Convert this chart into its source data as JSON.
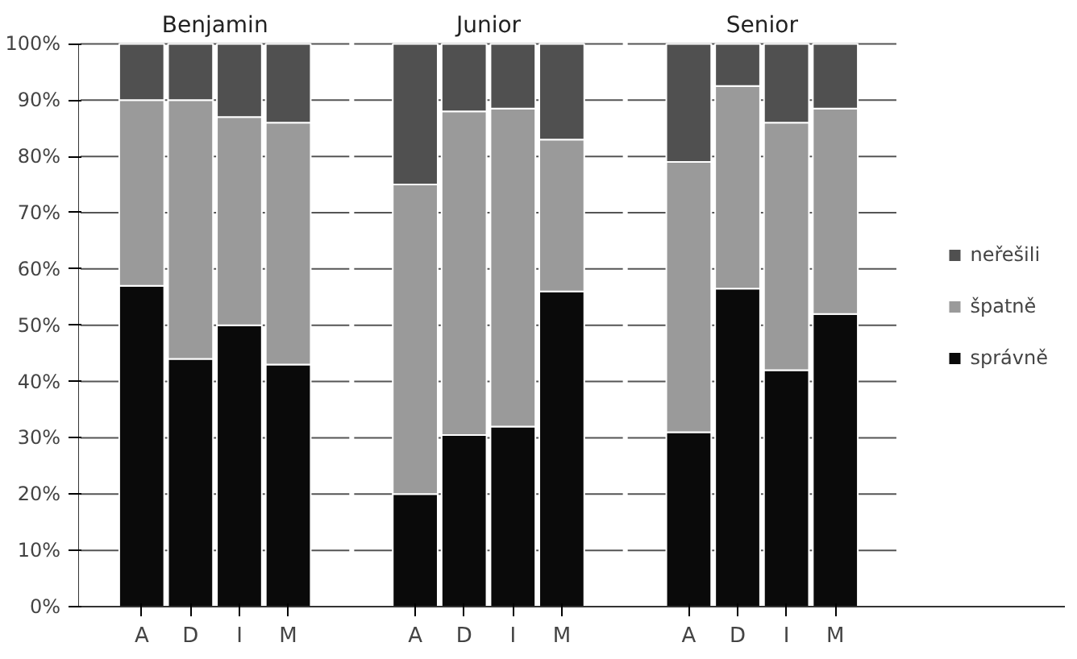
{
  "chart_data": [
    {
      "type": "bar",
      "title": "Benjamin",
      "stacked": true,
      "categories": [
        "A",
        "D",
        "I",
        "M"
      ],
      "ylim": [
        0,
        100
      ],
      "yticks": [
        {
          "value": 0,
          "label": "0%"
        },
        {
          "value": 10,
          "label": "10%"
        },
        {
          "value": 20,
          "label": "20%"
        },
        {
          "value": 30,
          "label": "30%"
        },
        {
          "value": 40,
          "label": "40%"
        },
        {
          "value": 50,
          "label": "50%"
        },
        {
          "value": 60,
          "label": "60%"
        },
        {
          "value": 70,
          "label": "70%"
        },
        {
          "value": 80,
          "label": "80%"
        },
        {
          "value": 90,
          "label": "90%"
        },
        {
          "value": 100,
          "label": "100%"
        }
      ],
      "grid": "y",
      "legend": "right",
      "series": [
        {
          "name": "správně",
          "color": "#0a0a0a",
          "values": [
            57,
            44,
            50,
            43
          ]
        },
        {
          "name": "špatně",
          "color": "#9a9a9a",
          "values": [
            33,
            46,
            37,
            43
          ]
        },
        {
          "name": "neřešili",
          "color": "#505050",
          "values": [
            10,
            10,
            13,
            14
          ]
        }
      ]
    },
    {
      "type": "bar",
      "title": "Junior",
      "stacked": true,
      "categories": [
        "A",
        "D",
        "I",
        "M"
      ],
      "ylim": [
        0,
        100
      ],
      "yticks": [
        0,
        10,
        20,
        30,
        40,
        50,
        60,
        70,
        80,
        90,
        100
      ],
      "tick_labels": "x",
      "grid": "y",
      "legend": "right",
      "series": [
        {
          "name": "správně",
          "color": "#0a0a0a",
          "values": [
            20,
            30.5,
            32,
            56
          ]
        },
        {
          "name": "špatně",
          "color": "#9a9a9a",
          "values": [
            55,
            57.5,
            56.5,
            27
          ]
        },
        {
          "name": "neřešili",
          "color": "#505050",
          "values": [
            25,
            12,
            11.5,
            17
          ]
        }
      ]
    },
    {
      "type": "bar",
      "title": "Senior",
      "stacked": true,
      "categories": [
        "A",
        "D",
        "I",
        "M"
      ],
      "ylim": [
        0,
        100
      ],
      "yticks": [
        0,
        10,
        20,
        30,
        40,
        50,
        60,
        70,
        80,
        90,
        100
      ],
      "tick_labels": "x",
      "grid": "y",
      "legend": "right",
      "series": [
        {
          "name": "správně",
          "color": "#0a0a0a",
          "values": [
            31,
            56.5,
            42,
            52
          ]
        },
        {
          "name": "špatně",
          "color": "#9a9a9a",
          "values": [
            48,
            36,
            44,
            36.5
          ]
        },
        {
          "name": "neřešili",
          "color": "#505050",
          "values": [
            21,
            7.5,
            14,
            11.5
          ]
        }
      ]
    }
  ]
}
